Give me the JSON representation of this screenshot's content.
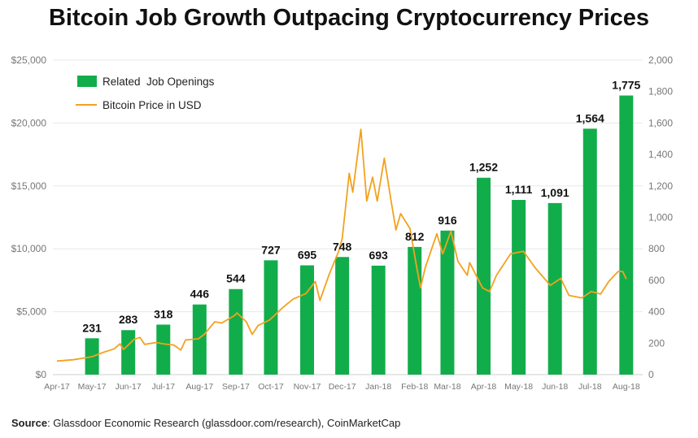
{
  "chart_data": {
    "type": "bar+line",
    "title": "Bitcoin Job Growth Outpacing Cryptocurrency Prices",
    "source_label": "Source",
    "source_text": ": Glassdoor Economic Research (glassdoor.com/research), CoinMarketCap",
    "legend_position": "top-left",
    "grid": true,
    "colors": {
      "bars": "#12ad4b",
      "line": "#f2a21e"
    },
    "x_ticks": [
      "Apr-17",
      "May-17",
      "Jun-17",
      "Jul-17",
      "Aug-17",
      "Sep-17",
      "Oct-17",
      "Nov-17",
      "Dec-17",
      "Jan-18",
      "Feb-18",
      "Mar-18",
      "Apr-18",
      "May-18",
      "Jun-18",
      "Jul-18",
      "Aug-18"
    ],
    "x_tick_dates": [
      "2017-04-01",
      "2017-05-01",
      "2017-06-01",
      "2017-07-01",
      "2017-08-01",
      "2017-09-01",
      "2017-10-01",
      "2017-11-01",
      "2017-12-01",
      "2018-01-01",
      "2018-02-01",
      "2018-03-01",
      "2018-04-01",
      "2018-05-01",
      "2018-06-01",
      "2018-07-01",
      "2018-08-01"
    ],
    "left_axis": {
      "ylim": [
        0,
        25000
      ],
      "ticks": [
        "$0",
        "$5,000",
        "$10,000",
        "$15,000",
        "$20,000",
        "$25,000"
      ]
    },
    "right_axis": {
      "ylim": [
        0,
        2000
      ],
      "ticks": [
        "0",
        "200",
        "400",
        "600",
        "800",
        "1,000",
        "1,200",
        "1,400",
        "1,600",
        "1,800",
        "2,000"
      ]
    },
    "series": [
      {
        "name": "Related  Job Openings",
        "axis": "right",
        "type": "bar",
        "dates": [
          "2017-05-01",
          "2017-06-01",
          "2017-07-01",
          "2017-08-01",
          "2017-09-01",
          "2017-10-01",
          "2017-11-01",
          "2017-12-01",
          "2018-01-01",
          "2018-02-01",
          "2018-03-01",
          "2018-04-01",
          "2018-05-01",
          "2018-06-01",
          "2018-07-01",
          "2018-08-01"
        ],
        "values": [
          231,
          283,
          318,
          446,
          544,
          727,
          695,
          748,
          693,
          812,
          916,
          1252,
          1111,
          1091,
          1564,
          1775
        ],
        "labels": [
          "231",
          "283",
          "318",
          "446",
          "544",
          "727",
          "695",
          "748",
          "693",
          "812",
          "916",
          "1,252",
          "1,111",
          "1,091",
          "1,564",
          "1,775"
        ]
      },
      {
        "name": "Bitcoin Price in USD",
        "axis": "left",
        "type": "line",
        "points": [
          [
            "2017-04-01",
            1080
          ],
          [
            "2017-04-15",
            1180
          ],
          [
            "2017-05-01",
            1420
          ],
          [
            "2017-05-10",
            1750
          ],
          [
            "2017-05-20",
            2050
          ],
          [
            "2017-05-25",
            2450
          ],
          [
            "2017-05-28",
            2000
          ],
          [
            "2017-06-06",
            2800
          ],
          [
            "2017-06-11",
            2950
          ],
          [
            "2017-06-15",
            2400
          ],
          [
            "2017-06-25",
            2550
          ],
          [
            "2017-07-01",
            2450
          ],
          [
            "2017-07-10",
            2350
          ],
          [
            "2017-07-16",
            1950
          ],
          [
            "2017-07-20",
            2750
          ],
          [
            "2017-07-31",
            2850
          ],
          [
            "2017-08-05",
            3200
          ],
          [
            "2017-08-14",
            4200
          ],
          [
            "2017-08-20",
            4100
          ],
          [
            "2017-08-31",
            4700
          ],
          [
            "2017-09-02",
            4900
          ],
          [
            "2017-09-10",
            4200
          ],
          [
            "2017-09-15",
            3200
          ],
          [
            "2017-09-20",
            3900
          ],
          [
            "2017-09-30",
            4350
          ],
          [
            "2017-10-12",
            5400
          ],
          [
            "2017-10-20",
            6000
          ],
          [
            "2017-10-31",
            6450
          ],
          [
            "2017-11-08",
            7400
          ],
          [
            "2017-11-12",
            5900
          ],
          [
            "2017-11-20",
            8000
          ],
          [
            "2017-11-28",
            9800
          ],
          [
            "2017-12-01",
            10800
          ],
          [
            "2017-12-07",
            16000
          ],
          [
            "2017-12-10",
            14500
          ],
          [
            "2017-12-17",
            19500
          ],
          [
            "2017-12-22",
            13800
          ],
          [
            "2017-12-27",
            15700
          ],
          [
            "2017-12-31",
            13800
          ],
          [
            "2018-01-06",
            17200
          ],
          [
            "2018-01-12",
            13700
          ],
          [
            "2018-01-16",
            11500
          ],
          [
            "2018-01-20",
            12800
          ],
          [
            "2018-01-28",
            11600
          ],
          [
            "2018-02-02",
            8900
          ],
          [
            "2018-02-06",
            6900
          ],
          [
            "2018-02-10",
            8500
          ],
          [
            "2018-02-20",
            11200
          ],
          [
            "2018-02-25",
            9600
          ],
          [
            "2018-03-04",
            11400
          ],
          [
            "2018-03-10",
            9000
          ],
          [
            "2018-03-18",
            7900
          ],
          [
            "2018-03-20",
            8900
          ],
          [
            "2018-03-31",
            6900
          ],
          [
            "2018-04-06",
            6600
          ],
          [
            "2018-04-12",
            7900
          ],
          [
            "2018-04-24",
            9600
          ],
          [
            "2018-05-05",
            9800
          ],
          [
            "2018-05-15",
            8500
          ],
          [
            "2018-05-28",
            7100
          ],
          [
            "2018-06-06",
            7650
          ],
          [
            "2018-06-13",
            6300
          ],
          [
            "2018-06-24",
            6100
          ],
          [
            "2018-07-02",
            6600
          ],
          [
            "2018-07-10",
            6400
          ],
          [
            "2018-07-17",
            7400
          ],
          [
            "2018-07-25",
            8200
          ],
          [
            "2018-07-29",
            8200
          ],
          [
            "2018-08-01",
            7600
          ]
        ]
      }
    ]
  }
}
